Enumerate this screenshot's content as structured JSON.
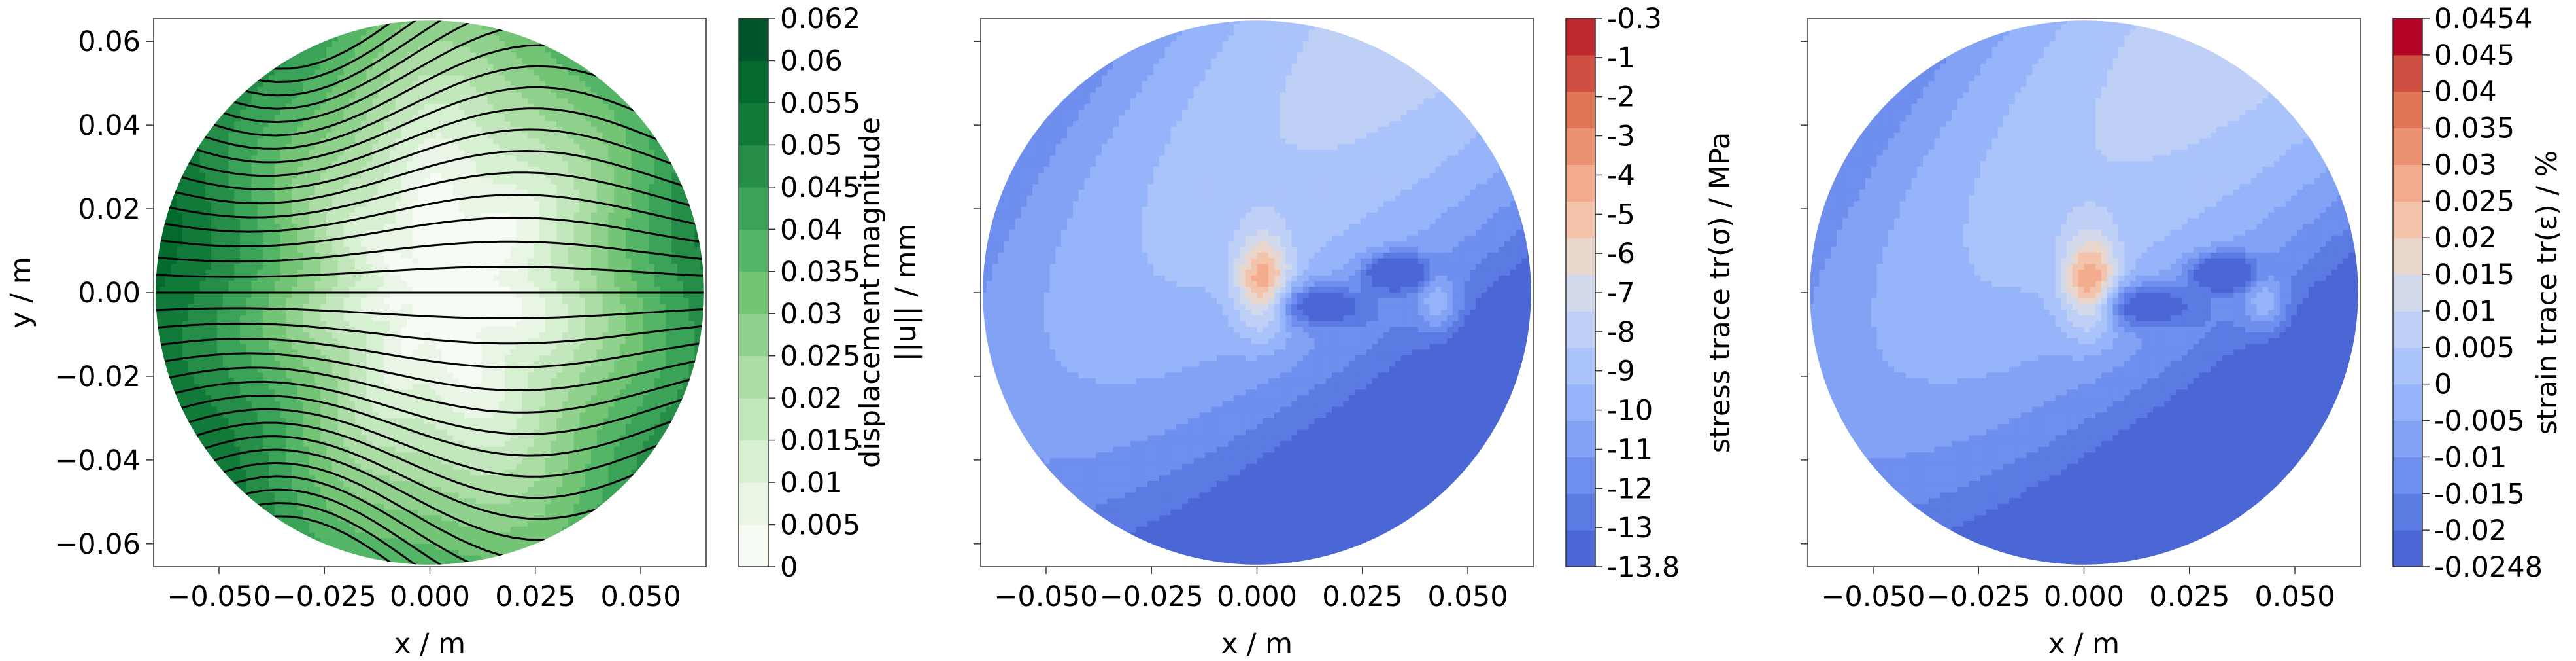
{
  "chart_data": [
    {
      "type": "contour",
      "xlabel": "x / m",
      "ylabel": "y / m",
      "xlim": [
        -0.0655,
        0.0655
      ],
      "ylim": [
        -0.0655,
        0.0655
      ],
      "xticks": [
        -0.05,
        -0.025,
        0.0,
        0.025,
        0.05
      ],
      "xtick_labels": [
        "−0.050",
        "−0.025",
        "0.000",
        "0.025",
        "0.050"
      ],
      "yticks": [
        0.06,
        0.04,
        0.02,
        0.0,
        -0.02,
        -0.04,
        -0.06
      ],
      "ytick_labels": [
        "0.06",
        "0.04",
        "0.02",
        "0.00",
        "−0.02",
        "−0.04",
        "−0.06"
      ],
      "domain_shape": "circle",
      "domain_radius": 0.065,
      "field": "displacement magnitude",
      "streamlines": true,
      "colormap": "Greens",
      "colorbar": {
        "label_line1": "displacement magnitude",
        "label_line2": "||u|| / mm",
        "levels": [
          0,
          0.005,
          0.01,
          0.015,
          0.02,
          0.025,
          0.03,
          0.035,
          0.04,
          0.045,
          0.05,
          0.055,
          0.06,
          0.062
        ],
        "tick_labels": [
          "0",
          "0.005",
          "0.01",
          "0.015",
          "0.02",
          "0.025",
          "0.03",
          "0.035",
          "0.04",
          "0.045",
          "0.05",
          "0.055",
          "0.06",
          "0.062"
        ],
        "colors": [
          "#f6fbf4",
          "#e9f6e5",
          "#d8f0d2",
          "#c3e7bc",
          "#abdda5",
          "#90d18d",
          "#74c476",
          "#55b567",
          "#3aa357",
          "#258d47",
          "#127a38",
          "#03692d",
          "#00532a"
        ]
      }
    },
    {
      "type": "contour",
      "xlabel": "x / m",
      "xlim": [
        -0.0655,
        0.0655
      ],
      "ylim": [
        -0.0655,
        0.0655
      ],
      "xticks": [
        -0.05,
        -0.025,
        0.0,
        0.025,
        0.05
      ],
      "xtick_labels": [
        "−0.050",
        "−0.025",
        "0.000",
        "0.025",
        "0.050"
      ],
      "domain_shape": "circle",
      "domain_radius": 0.065,
      "field": "stress trace",
      "colormap": "coolwarm",
      "colorbar": {
        "label": "stress trace tr(σ) / MPa",
        "levels": [
          -13.8,
          -13,
          -12,
          -11,
          -10,
          -9,
          -8,
          -7,
          -6,
          -5,
          -4,
          -3,
          -2,
          -1,
          -0.3
        ],
        "tick_labels": [
          "-13.8",
          "-13",
          "-12",
          "-11",
          "-10",
          "-9",
          "-8",
          "-7",
          "-6",
          "-5",
          "-4",
          "-3",
          "-2",
          "-1",
          "-0.3"
        ],
        "colors": [
          "#4b66d5",
          "#5b7be3",
          "#6e8fee",
          "#82a3f5",
          "#96b4fa",
          "#abc3fb",
          "#bfd0f7",
          "#d2d9ea",
          "#e9d6cc",
          "#f3c3ac",
          "#f3ad8e",
          "#ec9272",
          "#e07558",
          "#d04f43",
          "#c0282f"
        ]
      }
    },
    {
      "type": "contour",
      "xlabel": "x / m",
      "xlim": [
        -0.0655,
        0.0655
      ],
      "ylim": [
        -0.0655,
        0.0655
      ],
      "xticks": [
        -0.05,
        -0.025,
        0.0,
        0.025,
        0.05
      ],
      "xtick_labels": [
        "−0.050",
        "−0.025",
        "0.000",
        "0.025",
        "0.050"
      ],
      "domain_shape": "circle",
      "domain_radius": 0.065,
      "field": "strain trace",
      "colormap": "coolwarm",
      "colorbar": {
        "label": "strain trace tr(ε) / %",
        "levels": [
          -0.0248,
          -0.02,
          -0.015,
          -0.01,
          -0.005,
          0,
          0.005,
          0.01,
          0.015,
          0.02,
          0.025,
          0.03,
          0.035,
          0.04,
          0.045,
          0.0454
        ],
        "tick_labels": [
          "-0.0248",
          "-0.02",
          "-0.015",
          "-0.01",
          "-0.005",
          "0",
          "0.005",
          "0.01",
          "0.015",
          "0.02",
          "0.025",
          "0.03",
          "0.035",
          "0.04",
          "0.045",
          "0.0454"
        ],
        "colors": [
          "#4b66d5",
          "#5b7be3",
          "#6e8fee",
          "#82a3f5",
          "#96b4fa",
          "#abc3fb",
          "#bfd0f7",
          "#d2d9ea",
          "#e9d6cc",
          "#f3c3ac",
          "#f3ad8e",
          "#ec9272",
          "#e07558",
          "#d04f43",
          "#b40426"
        ]
      }
    }
  ]
}
